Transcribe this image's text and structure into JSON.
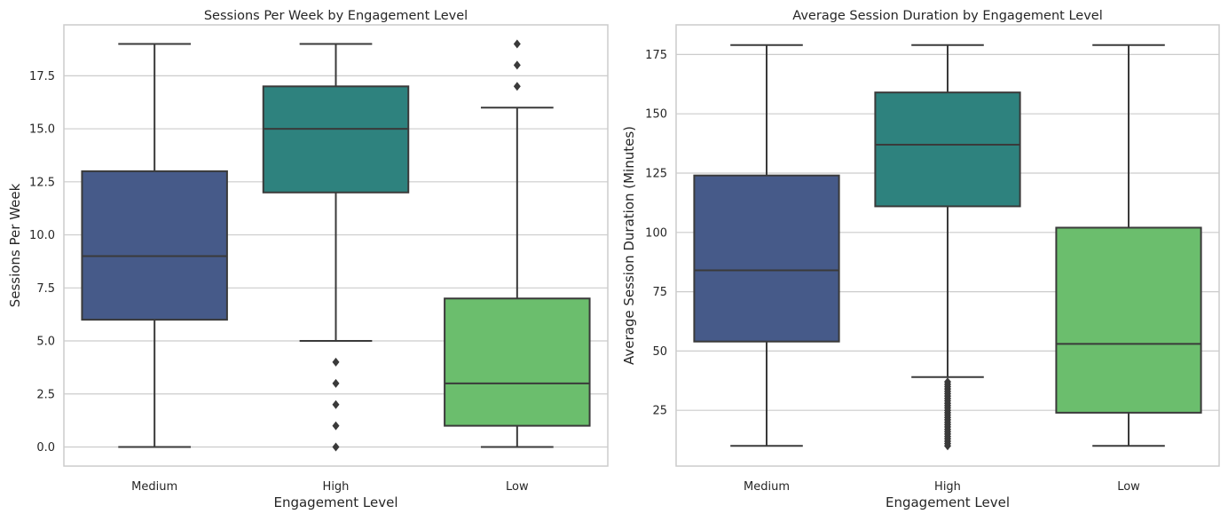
{
  "chart_data": [
    {
      "type": "box",
      "title": "Sessions Per Week by Engagement Level",
      "xlabel": "Engagement Level",
      "ylabel": "Sessions Per Week",
      "ylim": [
        -0.9,
        19.9
      ],
      "yticks": [
        0.0,
        2.5,
        5.0,
        7.5,
        10.0,
        12.5,
        15.0,
        17.5
      ],
      "ytick_labels": [
        "0.0",
        "2.5",
        "5.0",
        "7.5",
        "10.0",
        "12.5",
        "15.0",
        "17.5"
      ],
      "grid": true,
      "categories": [
        "Medium",
        "High",
        "Low"
      ],
      "boxes": [
        {
          "category": "Medium",
          "whisker_low": 0,
          "q1": 6,
          "median": 9,
          "q3": 13,
          "whisker_high": 19,
          "fliers": [],
          "color": "#465a89"
        },
        {
          "category": "High",
          "whisker_low": 5,
          "q1": 12,
          "median": 15,
          "q3": 17,
          "whisker_high": 19,
          "fliers": [
            0,
            1,
            2,
            3,
            4
          ],
          "color": "#2e827e"
        },
        {
          "category": "Low",
          "whisker_low": 0,
          "q1": 1,
          "median": 3,
          "q3": 7,
          "whisker_high": 16,
          "fliers": [
            17,
            18,
            19
          ],
          "color": "#6bbe6d"
        }
      ]
    },
    {
      "type": "box",
      "title": "Average Session Duration by Engagement Level",
      "xlabel": "Engagement Level",
      "ylabel": "Average Session Duration (Minutes)",
      "ylim": [
        1.5,
        187.5
      ],
      "yticks": [
        25,
        50,
        75,
        100,
        125,
        150,
        175
      ],
      "ytick_labels": [
        "25",
        "50",
        "75",
        "100",
        "125",
        "150",
        "175"
      ],
      "grid": true,
      "categories": [
        "Medium",
        "High",
        "Low"
      ],
      "boxes": [
        {
          "category": "Medium",
          "whisker_low": 10,
          "q1": 54,
          "median": 84,
          "q3": 124,
          "whisker_high": 179,
          "fliers": [],
          "color": "#465a89"
        },
        {
          "category": "High",
          "whisker_low": 39,
          "q1": 111,
          "median": 137,
          "q3": 159,
          "whisker_high": 179,
          "fliers": [
            10,
            11,
            12,
            13,
            14,
            15,
            16,
            17,
            18,
            19,
            20,
            21,
            22,
            23,
            24,
            25,
            26,
            27,
            28,
            29,
            30,
            31,
            32,
            33,
            34,
            35,
            36,
            37
          ],
          "color": "#2e827e"
        },
        {
          "category": "Low",
          "whisker_low": 10,
          "q1": 24,
          "median": 53,
          "q3": 102,
          "whisker_high": 179,
          "fliers": [],
          "color": "#6bbe6d"
        }
      ]
    }
  ]
}
